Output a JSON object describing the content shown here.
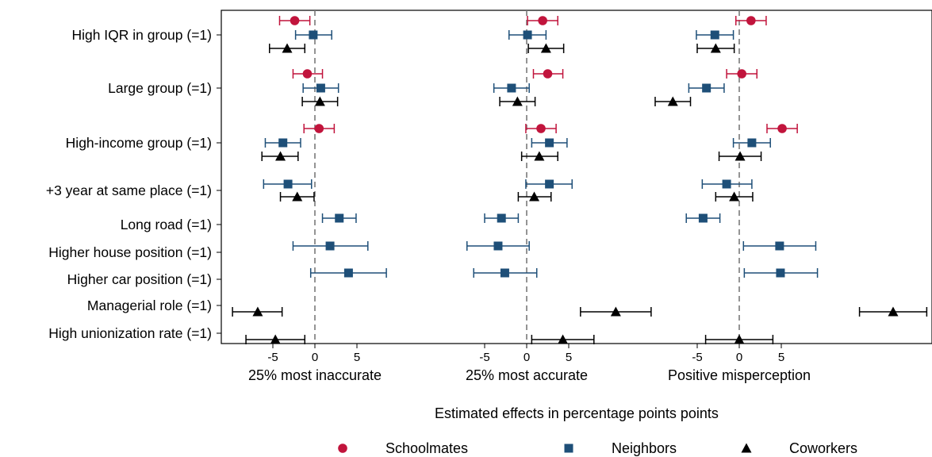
{
  "chart_data": {
    "type": "scatter",
    "xlabel": "Estimated effects in percentage points points",
    "categories": [
      "High IQR in group (=1)",
      "Large group (=1)",
      "High-income group (=1)",
      "+3 year at same place (=1)",
      "Long road (=1)",
      "Higher house position (=1)",
      "Higher car position (=1)",
      "Managerial role (=1)",
      "High unionization rate (=1)"
    ],
    "panels": [
      {
        "name": "25% most inaccurate",
        "ticks": [
          -5,
          0,
          5
        ]
      },
      {
        "name": "25% most accurate",
        "ticks": [
          -5,
          0,
          5
        ]
      },
      {
        "name": "Positive misperception",
        "ticks": [
          -5,
          0,
          5
        ]
      }
    ],
    "legend": {
      "position": "bottom",
      "entries": [
        {
          "name": "Schoolmates",
          "color": "#c1143c",
          "symbol": "circle"
        },
        {
          "name": "Neighbors",
          "color": "#1e4f78",
          "symbol": "square"
        },
        {
          "name": "Coworkers",
          "color": "#000000",
          "symbol": "triangle"
        }
      ]
    },
    "series": [
      {
        "name": "Schoolmates",
        "points": [
          {
            "row": 0,
            "panel": 0,
            "est": -2.4,
            "lo": -4.2,
            "hi": -0.6
          },
          {
            "row": 0,
            "panel": 1,
            "est": 1.9,
            "lo": 0.1,
            "hi": 3.7
          },
          {
            "row": 0,
            "panel": 2,
            "est": 1.4,
            "lo": -0.4,
            "hi": 3.2
          },
          {
            "row": 1,
            "panel": 0,
            "est": -0.9,
            "lo": -2.6,
            "hi": 0.9
          },
          {
            "row": 1,
            "panel": 1,
            "est": 2.5,
            "lo": 0.8,
            "hi": 4.3
          },
          {
            "row": 1,
            "panel": 2,
            "est": 0.3,
            "lo": -1.5,
            "hi": 2.1
          },
          {
            "row": 2,
            "panel": 0,
            "est": 0.5,
            "lo": -1.3,
            "hi": 2.3
          },
          {
            "row": 2,
            "panel": 1,
            "est": 1.7,
            "lo": -0.1,
            "hi": 3.5
          },
          {
            "row": 2,
            "panel": 2,
            "est": 5.1,
            "lo": 3.3,
            "hi": 6.9
          }
        ]
      },
      {
        "name": "Neighbors",
        "points": [
          {
            "row": 0,
            "panel": 0,
            "est": -0.2,
            "lo": -2.3,
            "hi": 2.0
          },
          {
            "row": 0,
            "panel": 1,
            "est": 0.1,
            "lo": -2.1,
            "hi": 2.3
          },
          {
            "row": 0,
            "panel": 2,
            "est": -2.9,
            "lo": -5.1,
            "hi": -0.7
          },
          {
            "row": 1,
            "panel": 0,
            "est": 0.7,
            "lo": -1.4,
            "hi": 2.8
          },
          {
            "row": 1,
            "panel": 1,
            "est": -1.8,
            "lo": -3.9,
            "hi": 0.3
          },
          {
            "row": 1,
            "panel": 2,
            "est": -3.9,
            "lo": -6.0,
            "hi": -1.8
          },
          {
            "row": 2,
            "panel": 0,
            "est": -3.8,
            "lo": -5.9,
            "hi": -1.7
          },
          {
            "row": 2,
            "panel": 1,
            "est": 2.7,
            "lo": 0.6,
            "hi": 4.8
          },
          {
            "row": 2,
            "panel": 2,
            "est": 1.5,
            "lo": -0.7,
            "hi": 3.7
          },
          {
            "row": 3,
            "panel": 0,
            "est": -3.2,
            "lo": -6.1,
            "hi": -0.4
          },
          {
            "row": 3,
            "panel": 1,
            "est": 2.7,
            "lo": -0.1,
            "hi": 5.4
          },
          {
            "row": 3,
            "panel": 2,
            "est": -1.5,
            "lo": -4.4,
            "hi": 1.5
          },
          {
            "row": 4,
            "panel": 0,
            "est": 2.9,
            "lo": 0.9,
            "hi": 4.9
          },
          {
            "row": 4,
            "panel": 1,
            "est": -3.0,
            "lo": -5.0,
            "hi": -1.0
          },
          {
            "row": 4,
            "panel": 2,
            "est": -4.3,
            "lo": -6.3,
            "hi": -2.3
          },
          {
            "row": 5,
            "panel": 0,
            "est": 1.8,
            "lo": -2.6,
            "hi": 6.3
          },
          {
            "row": 5,
            "panel": 1,
            "est": -3.4,
            "lo": -7.1,
            "hi": 0.3
          },
          {
            "row": 5,
            "panel": 2,
            "est": 4.8,
            "lo": 0.5,
            "hi": 9.1
          },
          {
            "row": 6,
            "panel": 0,
            "est": 4.0,
            "lo": -0.5,
            "hi": 8.5
          },
          {
            "row": 6,
            "panel": 1,
            "est": -2.6,
            "lo": -6.3,
            "hi": 1.2
          },
          {
            "row": 6,
            "panel": 2,
            "est": 4.9,
            "lo": 0.6,
            "hi": 9.3
          }
        ]
      },
      {
        "name": "Coworkers",
        "points": [
          {
            "row": 0,
            "panel": 0,
            "est": -3.3,
            "lo": -5.4,
            "hi": -1.2
          },
          {
            "row": 0,
            "panel": 1,
            "est": 2.3,
            "lo": 0.2,
            "hi": 4.4
          },
          {
            "row": 0,
            "panel": 2,
            "est": -2.8,
            "lo": -5.0,
            "hi": -0.6
          },
          {
            "row": 1,
            "panel": 0,
            "est": 0.6,
            "lo": -1.5,
            "hi": 2.7
          },
          {
            "row": 1,
            "panel": 1,
            "est": -1.1,
            "lo": -3.2,
            "hi": 1.0
          },
          {
            "row": 1,
            "panel": 2,
            "est": -7.9,
            "lo": -10.0,
            "hi": -5.8
          },
          {
            "row": 2,
            "panel": 0,
            "est": -4.1,
            "lo": -6.3,
            "hi": -2.0
          },
          {
            "row": 2,
            "panel": 1,
            "est": 1.5,
            "lo": -0.6,
            "hi": 3.7
          },
          {
            "row": 2,
            "panel": 2,
            "est": 0.1,
            "lo": -2.4,
            "hi": 2.6
          },
          {
            "row": 3,
            "panel": 0,
            "est": -2.1,
            "lo": -4.1,
            "hi": -0.1
          },
          {
            "row": 3,
            "panel": 1,
            "est": 0.9,
            "lo": -1.0,
            "hi": 2.9
          },
          {
            "row": 3,
            "panel": 2,
            "est": -0.6,
            "lo": -2.8,
            "hi": 1.6
          },
          {
            "row": 7,
            "panel": 0,
            "est": -6.8,
            "lo": -9.8,
            "hi": -3.9
          },
          {
            "row": 7,
            "panel": 1,
            "est": 10.6,
            "lo": 6.4,
            "hi": 14.8
          },
          {
            "row": 7,
            "panel": 2,
            "est": 18.3,
            "lo": 14.3,
            "hi": 22.3
          },
          {
            "row": 8,
            "panel": 0,
            "est": -4.7,
            "lo": -8.2,
            "hi": -1.2
          },
          {
            "row": 8,
            "panel": 1,
            "est": 4.3,
            "lo": 0.6,
            "hi": 8.0
          },
          {
            "row": 8,
            "panel": 2,
            "est": 0.0,
            "lo": -4.0,
            "hi": 4.0
          }
        ]
      }
    ]
  }
}
